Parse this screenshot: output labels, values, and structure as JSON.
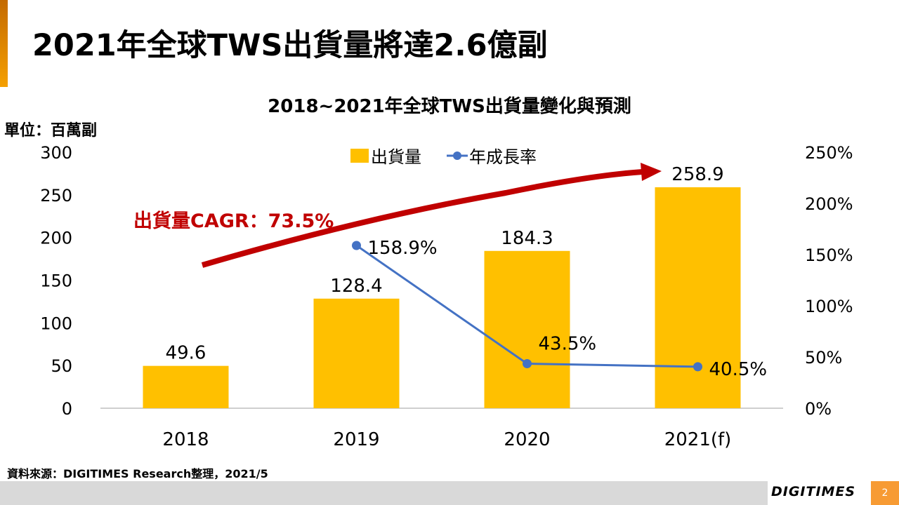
{
  "header": {
    "title": "2021年全球TWS出貨量將達2.6億副"
  },
  "unit_label": "單位：百萬副",
  "source": "資料來源：DIGITIMES Research整理，2021/5",
  "footer": {
    "logo": "DIGITIMES",
    "page_number": "2"
  },
  "chart_data": {
    "type": "bar",
    "title": "2018~2021年全球TWS出貨量變化與預測",
    "categories": [
      "2018",
      "2019",
      "2020",
      "2021(f)"
    ],
    "series": [
      {
        "name": "出貨量",
        "kind": "bar",
        "axis": "left",
        "color": "#ffc000",
        "values": [
          49.6,
          128.4,
          184.3,
          258.9
        ],
        "labels": [
          "49.6",
          "128.4",
          "184.3",
          "258.9"
        ]
      },
      {
        "name": "年成長率",
        "kind": "line",
        "axis": "right",
        "color": "#4472c4",
        "values": [
          null,
          158.9,
          43.5,
          40.5
        ],
        "labels": [
          "",
          "158.9%",
          "43.5%",
          "40.5%"
        ]
      }
    ],
    "left_axis": {
      "ylim": [
        0,
        300
      ],
      "ticks": [
        "0",
        "50",
        "100",
        "150",
        "200",
        "250",
        "300"
      ]
    },
    "right_axis": {
      "ylim": [
        0,
        250
      ],
      "ticks": [
        "0%",
        "50%",
        "100%",
        "150%",
        "200%",
        "250%"
      ]
    },
    "annotation": {
      "text": "出貨量CAGR：73.5%",
      "color": "#c00000"
    },
    "legend": "top-center",
    "grid": false
  }
}
